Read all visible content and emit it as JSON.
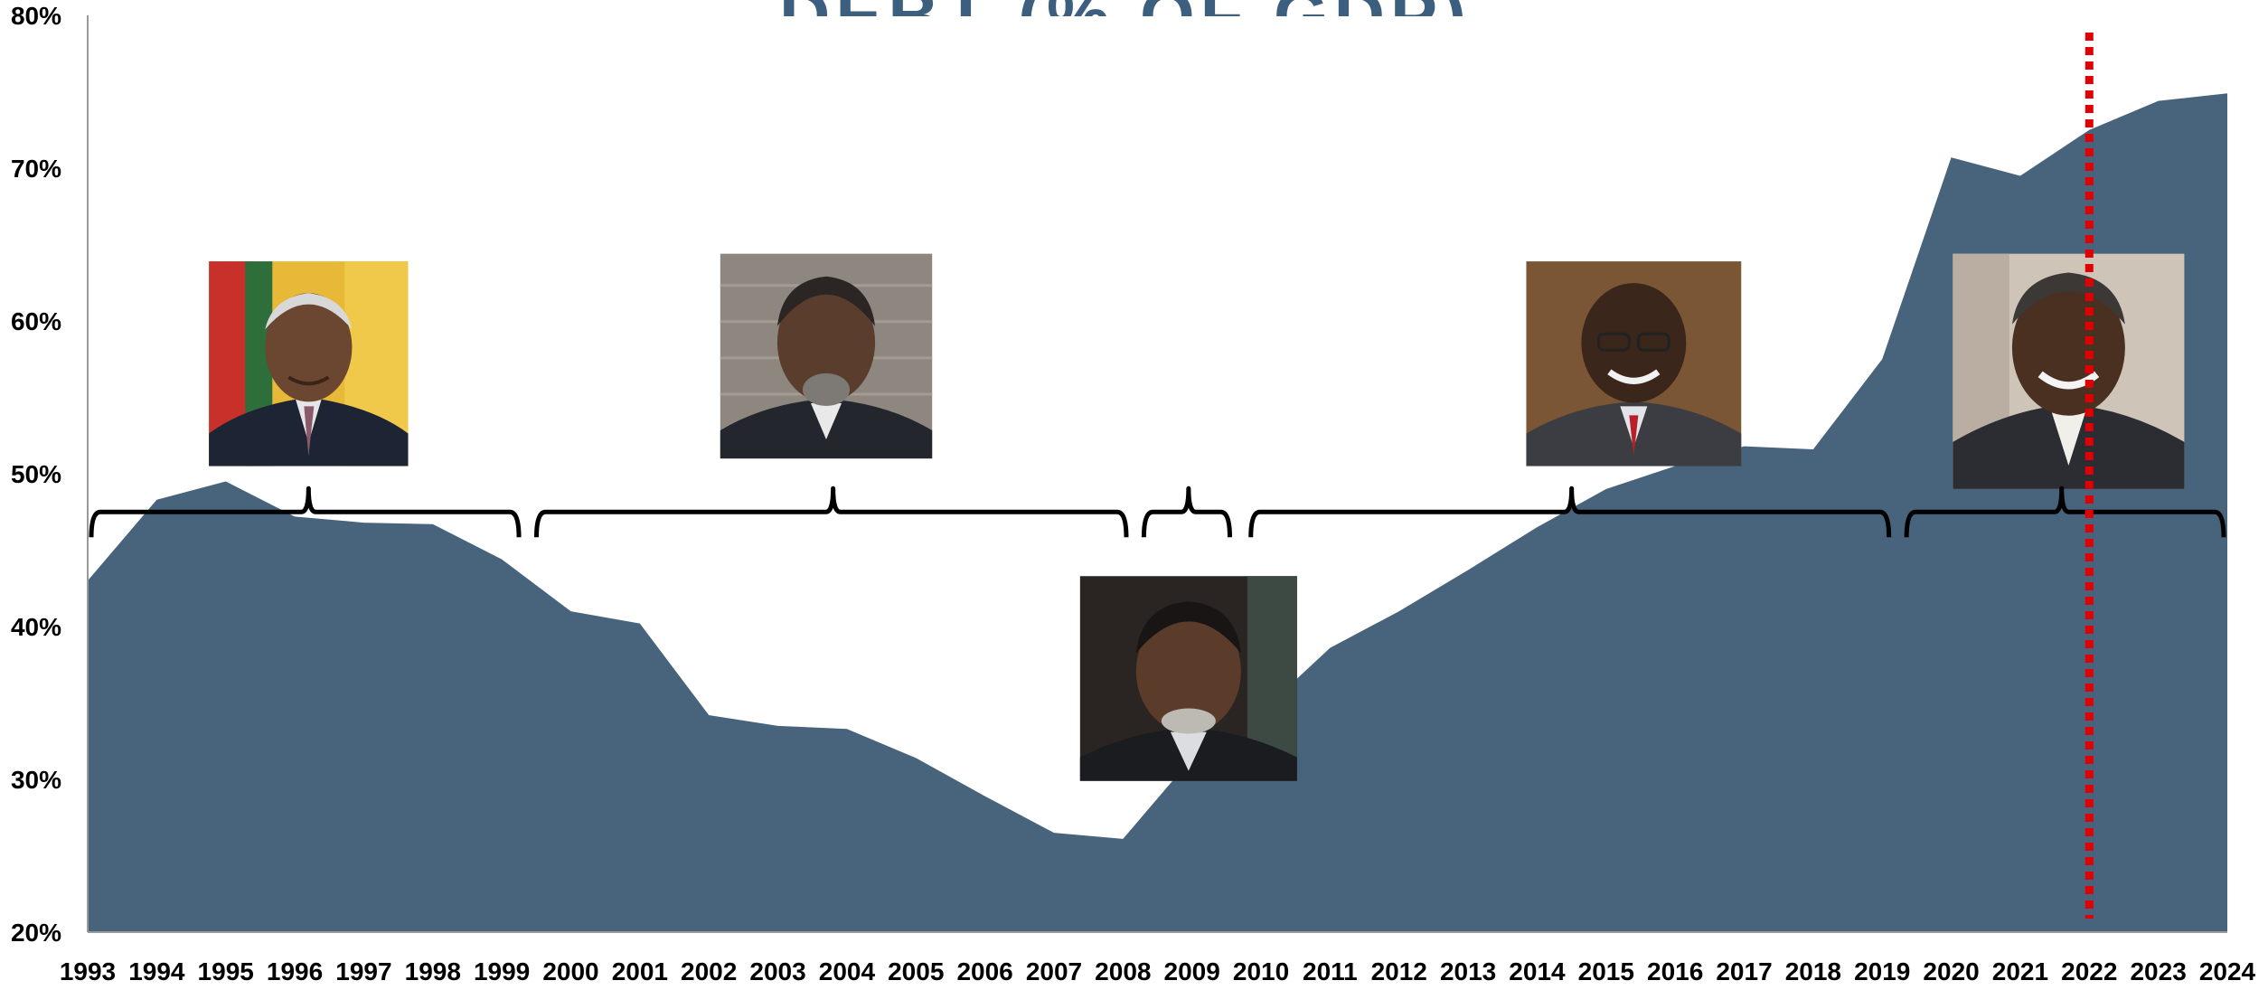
{
  "chart_data": {
    "type": "area",
    "title": "DEBT (% OF GDP)",
    "xlabel": "",
    "ylabel": "",
    "ylim": [
      20,
      80
    ],
    "y_ticks": [
      "20%",
      "30%",
      "40%",
      "50%",
      "60%",
      "70%",
      "80%"
    ],
    "grid": false,
    "legend": "none",
    "x": [
      1993,
      1994,
      1995,
      1996,
      1997,
      1998,
      1999,
      2000,
      2001,
      2002,
      2003,
      2004,
      2005,
      2006,
      2007,
      2008,
      2009,
      2010,
      2011,
      2012,
      2013,
      2014,
      2015,
      2016,
      2017,
      2018,
      2019,
      2020,
      2021,
      2022,
      2023,
      2024
    ],
    "x_tick_labels": [
      "1993",
      "1994",
      "1995",
      "1996",
      "1997",
      "1998",
      "1999",
      "2000",
      "2001",
      "2002",
      "2003",
      "2004",
      "2005",
      "2006",
      "2007",
      "2008",
      "2009",
      "2010",
      "2011",
      "2012",
      "2013",
      "2014",
      "2015",
      "2016",
      "2017",
      "2018",
      "2019",
      "2020",
      "2021",
      "2022",
      "2023",
      "2024"
    ],
    "series": [
      {
        "values": [
          43.0,
          48.3,
          49.5,
          47.2,
          46.8,
          46.7,
          44.4,
          41.0,
          40.2,
          34.2,
          33.5,
          33.3,
          31.4,
          28.9,
          26.5,
          26.1,
          31.4,
          34.4,
          38.6,
          41.0,
          43.7,
          46.5,
          49.0,
          50.5,
          51.8,
          51.6,
          57.5,
          70.7,
          69.5,
          72.5,
          74.4,
          74.9
        ],
        "color": "#48637c"
      }
    ],
    "marker_line": {
      "x": 2022,
      "color": "#e00000",
      "style": "dotted"
    },
    "presidential_terms": [
      {
        "from": 1993.0,
        "to": 1999.3,
        "tip": 1996.2,
        "portrait": "portrait-1",
        "portrait_center": 1996.2,
        "portrait_top": 63.9,
        "portrait_bottom": 50.5
      },
      {
        "from": 1999.45,
        "to": 2008.1,
        "tip": 2003.8,
        "portrait": "portrait-2",
        "portrait_center": 2003.7,
        "portrait_top": 64.4,
        "portrait_bottom": 51.0
      },
      {
        "from": 2008.25,
        "to": 2009.6,
        "tip": 2008.95,
        "portrait": "portrait-3",
        "portrait_center": 2008.95,
        "portrait_top": 43.3,
        "portrait_bottom": 29.9
      },
      {
        "from": 2009.8,
        "to": 2019.15,
        "tip": 2014.5,
        "portrait": "portrait-4",
        "portrait_center": 2015.4,
        "portrait_top": 63.9,
        "portrait_bottom": 50.5
      },
      {
        "from": 2019.3,
        "to": 2024.0,
        "tip": 2021.6,
        "portrait": "portrait-5",
        "portrait_center": 2021.7,
        "portrait_top": 64.4,
        "portrait_bottom": 49.0
      }
    ]
  }
}
